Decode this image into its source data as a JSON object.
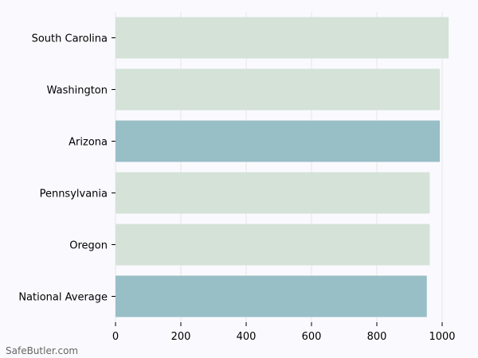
{
  "chart_data": {
    "type": "bar",
    "orientation": "horizontal",
    "categories": [
      "South Carolina",
      "Washington",
      "Arizona",
      "Pennsylvania",
      "Oregon",
      "National Average"
    ],
    "values": [
      1020,
      993,
      993,
      962,
      962,
      953
    ],
    "bar_colors": [
      "#d4e2d8",
      "#d4e2d8",
      "#98bec6",
      "#d4e2d8",
      "#d4e2d8",
      "#98bec6"
    ],
    "xlim": [
      0,
      1050
    ],
    "xticks": [
      0,
      200,
      400,
      600,
      800,
      1000
    ],
    "title": "",
    "xlabel": "",
    "ylabel": "",
    "grid": "vertical",
    "legend": "none"
  },
  "watermark": "SafeButler.com",
  "colors": {
    "background": "#fafafe",
    "grid": "#e6e6ea",
    "axis": "#000000"
  }
}
